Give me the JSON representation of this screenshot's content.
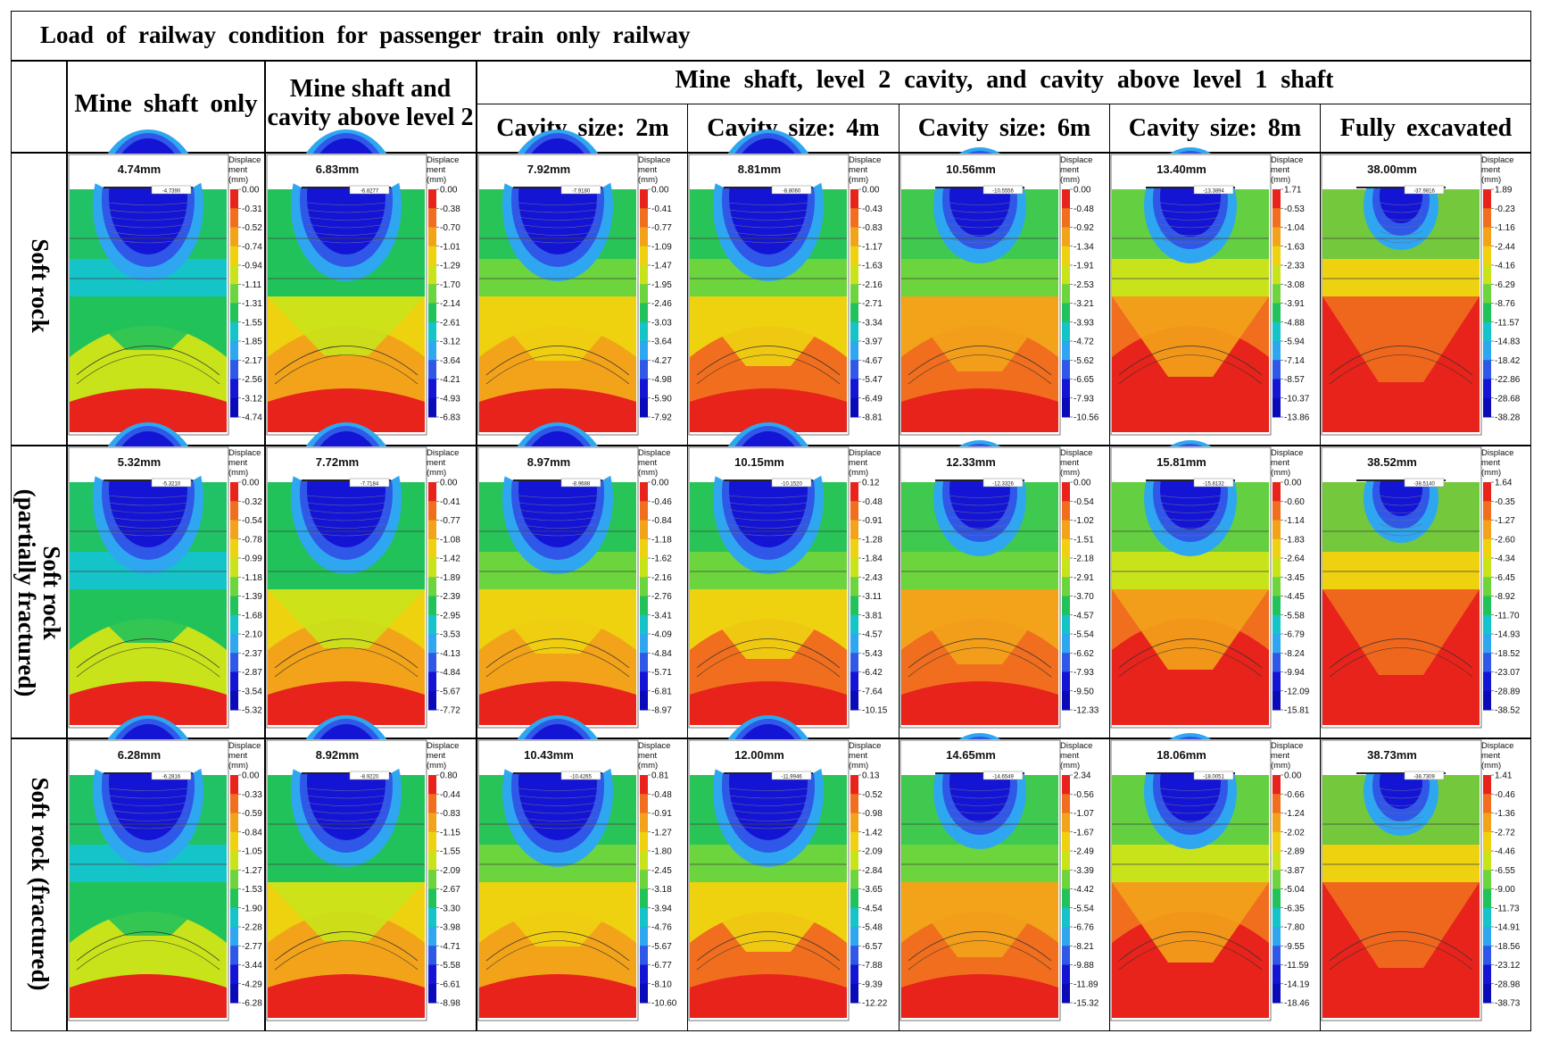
{
  "title": "Load of railway condition for passenger train only railway",
  "headers": {
    "col1": "Mine shaft only",
    "col2": [
      "Mine shaft and",
      "cavity above level 2"
    ],
    "group": "Mine shaft, level 2 cavity, and cavity above level 1 shaft",
    "sub": [
      "Cavity size: 2m",
      "Cavity size: 4m",
      "Cavity size: 6m",
      "Cavity size: 8m",
      "Fully excavated"
    ]
  },
  "row_labels": [
    [
      "Soft rock"
    ],
    [
      "Soft rock",
      "(partially fractured)"
    ],
    [
      "Soft rock (fractured)"
    ]
  ],
  "legend_title": [
    "Displace",
    "ment",
    "(mm)"
  ],
  "colors": {
    "scale": [
      "#e8231b",
      "#f06e1e",
      "#f2a319",
      "#eed10f",
      "#c9e31a",
      "#6cd43c",
      "#22c25a",
      "#14c4c8",
      "#2ea7f0",
      "#2f57e8",
      "#1414d4"
    ]
  },
  "plots": [
    [
      {
        "max": "4.74mm",
        "probe": "-4.7390",
        "legend": [
          "0.00",
          "-0.31",
          "-0.52",
          "-0.74",
          "-0.94",
          "-1.11",
          "-1.31",
          "-1.55",
          "-1.85",
          "-2.17",
          "-2.56",
          "-3.12",
          "-4.74"
        ]
      },
      {
        "max": "6.83mm",
        "probe": "-6.8277",
        "legend": [
          "0.00",
          "-0.38",
          "-0.70",
          "-1.01",
          "-1.29",
          "-1.70",
          "-2.14",
          "-2.61",
          "-3.12",
          "-3.64",
          "-4.21",
          "-4.93",
          "-6.83"
        ]
      },
      {
        "max": "7.92mm",
        "probe": "-7.9180",
        "legend": [
          "0.00",
          "-0.41",
          "-0.77",
          "-1.09",
          "-1.47",
          "-1.95",
          "-2.46",
          "-3.03",
          "-3.64",
          "-4.27",
          "-4.98",
          "-5.90",
          "-7.92"
        ]
      },
      {
        "max": "8.81mm",
        "probe": "-8.8060",
        "legend": [
          "0.00",
          "-0.43",
          "-0.83",
          "-1.17",
          "-1.63",
          "-2.16",
          "-2.71",
          "-3.34",
          "-3.97",
          "-4.67",
          "-5.47",
          "-6.49",
          "-8.81"
        ]
      },
      {
        "max": "10.56mm",
        "probe": "-10.5556",
        "legend": [
          "0.00",
          "-0.48",
          "-0.92",
          "-1.34",
          "-1.91",
          "-2.53",
          "-3.21",
          "-3.93",
          "-4.72",
          "-5.62",
          "-6.65",
          "-7.93",
          "-10.56"
        ]
      },
      {
        "max": "13.40mm",
        "probe": "-13.3894",
        "legend": [
          "1.71",
          "-0.53",
          "-1.04",
          "-1.63",
          "-2.33",
          "-3.08",
          "-3.91",
          "-4.88",
          "-5.94",
          "-7.14",
          "-8.57",
          "-10.37",
          "-13.86"
        ]
      },
      {
        "max": "38.00mm",
        "probe": "-37.9816",
        "legend": [
          "1.89",
          "-0.23",
          "-1.16",
          "-2.44",
          "-4.16",
          "-6.29",
          "-8.76",
          "-11.57",
          "-14.83",
          "-18.42",
          "-22.86",
          "-28.68",
          "-38.28"
        ]
      }
    ],
    [
      {
        "max": "5.32mm",
        "probe": "-5.3210",
        "legend": [
          "0.00",
          "-0.32",
          "-0.54",
          "-0.78",
          "-0.99",
          "-1.18",
          "-1.39",
          "-1.68",
          "-2.10",
          "-2.37",
          "-2.87",
          "-3.54",
          "-5.32"
        ]
      },
      {
        "max": "7.72mm",
        "probe": "-7.7184",
        "legend": [
          "0.00",
          "-0.41",
          "-0.77",
          "-1.08",
          "-1.42",
          "-1.89",
          "-2.39",
          "-2.95",
          "-3.53",
          "-4.13",
          "-4.84",
          "-5.67",
          "-7.72"
        ]
      },
      {
        "max": "8.97mm",
        "probe": "-8.9688",
        "legend": [
          "0.00",
          "-0.46",
          "-0.84",
          "-1.18",
          "-1.62",
          "-2.16",
          "-2.76",
          "-3.41",
          "-4.09",
          "-4.84",
          "-5.71",
          "-6.81",
          "-8.97"
        ]
      },
      {
        "max": "10.15mm",
        "probe": "-10.1520",
        "legend": [
          "0.12",
          "-0.48",
          "-0.91",
          "-1.28",
          "-1.84",
          "-2.43",
          "-3.11",
          "-3.81",
          "-4.57",
          "-5.43",
          "-6.42",
          "-7.64",
          "-10.15"
        ]
      },
      {
        "max": "12.33mm",
        "probe": "-12.3326",
        "legend": [
          "0.00",
          "-0.54",
          "-1.02",
          "-1.51",
          "-2.18",
          "-2.91",
          "-3.70",
          "-4.57",
          "-5.54",
          "-6.62",
          "-7.93",
          "-9.50",
          "-12.33"
        ]
      },
      {
        "max": "15.81mm",
        "probe": "-15.8132",
        "legend": [
          "0.00",
          "-0.60",
          "-1.14",
          "-1.83",
          "-2.64",
          "-3.45",
          "-4.45",
          "-5.58",
          "-6.79",
          "-8.24",
          "-9.94",
          "-12.09",
          "-15.81"
        ]
      },
      {
        "max": "38.52mm",
        "probe": "-38.5140",
        "legend": [
          "1.64",
          "-0.35",
          "-1.27",
          "-2.60",
          "-4.34",
          "-6.45",
          "-8.92",
          "-11.70",
          "-14.93",
          "-18.52",
          "-23.07",
          "-28.89",
          "-38.52"
        ]
      }
    ],
    [
      {
        "max": "6.28mm",
        "probe": "-6.2816",
        "legend": [
          "0.00",
          "-0.33",
          "-0.59",
          "-0.84",
          "-1.05",
          "-1.27",
          "-1.53",
          "-1.90",
          "-2.28",
          "-2.77",
          "-3.44",
          "-4.29",
          "-6.28"
        ]
      },
      {
        "max": "8.92mm",
        "probe": "-8.9220",
        "legend": [
          "0.80",
          "-0.44",
          "-0.83",
          "-1.15",
          "-1.55",
          "-2.09",
          "-2.67",
          "-3.30",
          "-3.98",
          "-4.71",
          "-5.58",
          "-6.61",
          "-8.98"
        ]
      },
      {
        "max": "10.43mm",
        "probe": "-10.4265",
        "legend": [
          "0.81",
          "-0.48",
          "-0.91",
          "-1.27",
          "-1.80",
          "-2.45",
          "-3.18",
          "-3.94",
          "-4.76",
          "-5.67",
          "-6.77",
          "-8.10",
          "-10.60"
        ]
      },
      {
        "max": "12.00mm",
        "probe": "-11.9946",
        "legend": [
          "0.13",
          "-0.52",
          "-0.98",
          "-1.42",
          "-2.09",
          "-2.84",
          "-3.65",
          "-4.54",
          "-5.48",
          "-6.57",
          "-7.88",
          "-9.39",
          "-12.22"
        ]
      },
      {
        "max": "14.65mm",
        "probe": "-14.6549",
        "legend": [
          "2.34",
          "-0.56",
          "-1.07",
          "-1.67",
          "-2.49",
          "-3.39",
          "-4.42",
          "-5.54",
          "-6.76",
          "-8.21",
          "-9.88",
          "-11.89",
          "-15.32"
        ]
      },
      {
        "max": "18.06mm",
        "probe": "-18.0051",
        "legend": [
          "0.00",
          "-0.66",
          "-1.24",
          "-2.02",
          "-2.89",
          "-3.87",
          "-5.04",
          "-6.35",
          "-7.80",
          "-9.55",
          "-11.59",
          "-14.19",
          "-18.46"
        ]
      },
      {
        "max": "38.73mm",
        "probe": "-38.7309",
        "legend": [
          "1.41",
          "-0.46",
          "-1.36",
          "-2.72",
          "-4.46",
          "-6.55",
          "-9.00",
          "-11.73",
          "-14.91",
          "-18.56",
          "-23.12",
          "-28.98",
          "-38.73"
        ]
      }
    ]
  ]
}
